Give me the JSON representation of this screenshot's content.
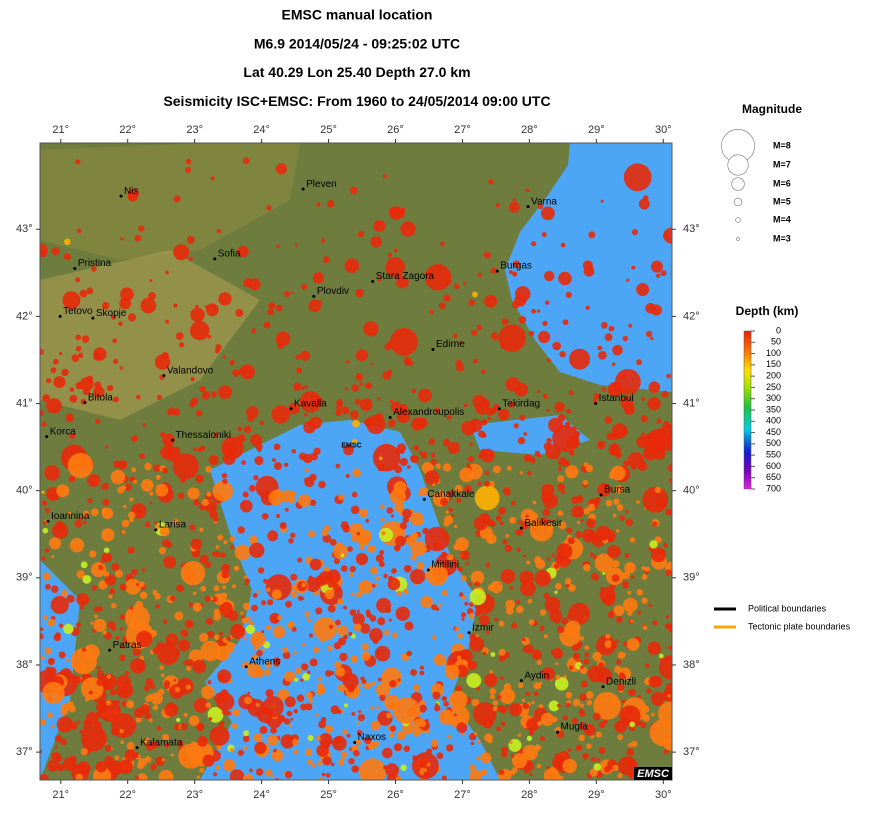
{
  "header": {
    "lines": [
      "EMSC manual location",
      "M6.9  2014/05/24 - 09:25:02 UTC",
      "Lat 40.29    Lon  25.40     Depth  27.0 km",
      "Seismicity ISC+EMSC: From 1960 to 24/05/2014 09:00 UTC"
    ]
  },
  "map": {
    "lonlim": [
      20.69,
      30.13
    ],
    "latlim": [
      36.68,
      43.99
    ],
    "lonticks": [
      {
        "value": 21,
        "label": "21°"
      },
      {
        "value": 22,
        "label": "22°"
      },
      {
        "value": 23,
        "label": "23°"
      },
      {
        "value": 24,
        "label": "24°"
      },
      {
        "value": 25,
        "label": "25°"
      },
      {
        "value": 26,
        "label": "26°"
      },
      {
        "value": 27,
        "label": "27°"
      },
      {
        "value": 28,
        "label": "28°"
      },
      {
        "value": 29,
        "label": "29°"
      },
      {
        "value": 30,
        "label": "30°"
      }
    ],
    "latticks": [
      {
        "value": 37,
        "label": "37°"
      },
      {
        "value": 38,
        "label": "38°"
      },
      {
        "value": 39,
        "label": "39°"
      },
      {
        "value": 40,
        "label": "40°"
      },
      {
        "value": 41,
        "label": "41°"
      },
      {
        "value": 42,
        "label": "42°"
      },
      {
        "value": 43,
        "label": "43°"
      }
    ],
    "cities": [
      {
        "name": "Nis",
        "lon": 21.9,
        "lat": 43.38
      },
      {
        "name": "Pleven",
        "lon": 24.62,
        "lat": 43.46
      },
      {
        "name": "Varna",
        "lon": 27.98,
        "lat": 43.26
      },
      {
        "name": "Pristina",
        "lon": 21.21,
        "lat": 42.55
      },
      {
        "name": "Sofia",
        "lon": 23.3,
        "lat": 42.66
      },
      {
        "name": "Stara Zagora",
        "lon": 25.66,
        "lat": 42.4
      },
      {
        "name": "Burgas",
        "lon": 27.52,
        "lat": 42.52
      },
      {
        "name": "Tetovo",
        "lon": 20.99,
        "lat": 42.0
      },
      {
        "name": "Skopje",
        "lon": 21.48,
        "lat": 41.98
      },
      {
        "name": "Plovdiv",
        "lon": 24.78,
        "lat": 42.23
      },
      {
        "name": "Edirne",
        "lon": 26.56,
        "lat": 41.62
      },
      {
        "name": "Valandovo",
        "lon": 22.54,
        "lat": 41.32
      },
      {
        "name": "Bitola",
        "lon": 21.36,
        "lat": 41.01
      },
      {
        "name": "Kavalla",
        "lon": 24.44,
        "lat": 40.94
      },
      {
        "name": "Alexandroupolis",
        "lon": 25.92,
        "lat": 40.84
      },
      {
        "name": "Tekirdag",
        "lon": 27.55,
        "lat": 40.94
      },
      {
        "name": "Istanbul",
        "lon": 28.99,
        "lat": 41.0
      },
      {
        "name": "Korca",
        "lon": 20.79,
        "lat": 40.62
      },
      {
        "name": "Thessaloniki",
        "lon": 22.67,
        "lat": 40.58
      },
      {
        "name": "Canakkale",
        "lon": 26.43,
        "lat": 39.9
      },
      {
        "name": "Bursa",
        "lon": 29.07,
        "lat": 39.95
      },
      {
        "name": "Ioannina",
        "lon": 20.81,
        "lat": 39.65
      },
      {
        "name": "Larisa",
        "lon": 22.42,
        "lat": 39.55
      },
      {
        "name": "Balikesir",
        "lon": 27.88,
        "lat": 39.57
      },
      {
        "name": "Mitilini",
        "lon": 26.49,
        "lat": 39.09
      },
      {
        "name": "Izmir",
        "lon": 27.1,
        "lat": 38.37
      },
      {
        "name": "Patras",
        "lon": 21.73,
        "lat": 38.17
      },
      {
        "name": "Athens",
        "lon": 23.77,
        "lat": 37.98
      },
      {
        "name": "Aydin",
        "lon": 27.88,
        "lat": 37.82
      },
      {
        "name": "Denizli",
        "lon": 29.1,
        "lat": 37.75
      },
      {
        "name": "Mugla",
        "lon": 28.42,
        "lat": 37.23
      },
      {
        "name": "Kalamata",
        "lon": 22.14,
        "lat": 37.05
      },
      {
        "name": "Naxos",
        "lon": 25.39,
        "lat": 37.11
      }
    ],
    "epicenter": {
      "label": "EMSC",
      "lon": 25.4,
      "lat": 40.29
    },
    "logo": "EMSC"
  },
  "magnitude_legend": {
    "title": "Magnitude",
    "items": [
      {
        "label": "M=8",
        "magnitude": 8
      },
      {
        "label": "M=7",
        "magnitude": 7
      },
      {
        "label": "M=6",
        "magnitude": 6
      },
      {
        "label": "M=5",
        "magnitude": 5
      },
      {
        "label": "M=4",
        "magnitude": 4
      },
      {
        "label": "M=3",
        "magnitude": 3
      }
    ]
  },
  "depth_legend": {
    "title": "Depth (km)",
    "range": [
      0,
      700
    ],
    "ticks": [
      0,
      50,
      100,
      150,
      200,
      250,
      300,
      350,
      400,
      450,
      500,
      550,
      600,
      650,
      700
    ]
  },
  "boundary_legend": [
    {
      "label": "Political boundaries",
      "color": "#000000"
    },
    {
      "label": "Tectonic plate boundaries",
      "color": "#f5a800"
    }
  ]
}
